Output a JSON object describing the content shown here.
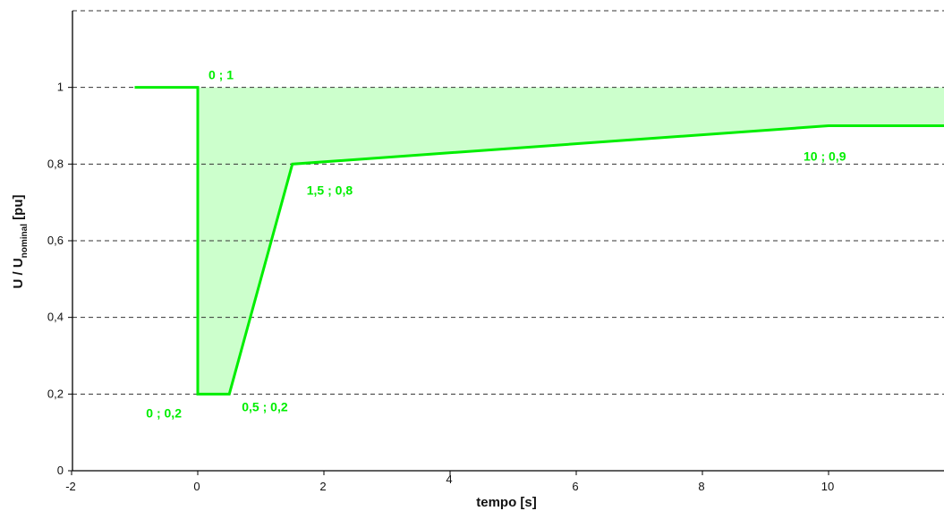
{
  "chart_data": {
    "type": "area",
    "xlabel": "tempo [s]",
    "ylabel": {
      "main": "U / U",
      "subscript": "nominal",
      "unit": " [pu]"
    },
    "xlim": [
      -2,
      12
    ],
    "ylim": [
      0,
      1.2
    ],
    "x_ticks": [
      {
        "value": -2,
        "label": "-2"
      },
      {
        "value": 0,
        "label": "0"
      },
      {
        "value": 2,
        "label": "2"
      },
      {
        "value": 4,
        "label": "4"
      },
      {
        "value": 6,
        "label": "6"
      },
      {
        "value": 8,
        "label": "8"
      },
      {
        "value": 10,
        "label": "10"
      }
    ],
    "y_ticks": [
      {
        "value": 0,
        "label": "0"
      },
      {
        "value": 0.2,
        "label": "0,2"
      },
      {
        "value": 0.4,
        "label": "0,4"
      },
      {
        "value": 0.6,
        "label": "0,6"
      },
      {
        "value": 0.8,
        "label": "0,8"
      },
      {
        "value": 1,
        "label": "1"
      }
    ],
    "grid": "horizontal-dashed",
    "series": [
      {
        "points": [
          [
            -1,
            1
          ],
          [
            0,
            1
          ],
          [
            0,
            0.2
          ],
          [
            0.5,
            0.2
          ],
          [
            1.5,
            0.8
          ],
          [
            10,
            0.9
          ],
          [
            12,
            0.9
          ]
        ],
        "color": "#00ee00"
      }
    ],
    "fill": {
      "upper": 1,
      "color": "#ccffcc"
    },
    "annotations": [
      {
        "text": "0 ; 1",
        "x": 0,
        "y": 1
      },
      {
        "text": "0 ; 0,2",
        "x": 0,
        "y": 0.2
      },
      {
        "text": "0,5 ; 0,2",
        "x": 0.5,
        "y": 0.2
      },
      {
        "text": "1,5 ; 0,8",
        "x": 1.5,
        "y": 0.8
      },
      {
        "text": "10 ; 0,9",
        "x": 10,
        "y": 0.9
      }
    ]
  }
}
